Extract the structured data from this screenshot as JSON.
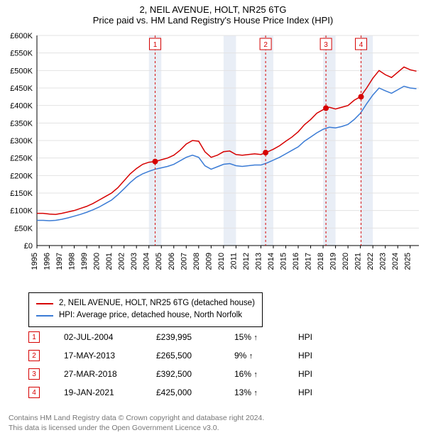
{
  "title_line1": "2, NEIL AVENUE, HOLT, NR25 6TG",
  "title_line2": "Price paid vs. HM Land Registry's House Price Index (HPI)",
  "chart": {
    "type": "line",
    "y_prefix": "£",
    "ylim": [
      0,
      600000
    ],
    "ytick_step": 50000,
    "yticks_k": [
      "£0",
      "£50K",
      "£100K",
      "£150K",
      "£200K",
      "£250K",
      "£300K",
      "£350K",
      "£400K",
      "£450K",
      "£500K",
      "£550K",
      "£600K"
    ],
    "xlim_years": [
      1995,
      2025.7
    ],
    "xticks": [
      1995,
      1996,
      1997,
      1998,
      1999,
      2000,
      2001,
      2002,
      2003,
      2004,
      2005,
      2006,
      2007,
      2008,
      2009,
      2010,
      2011,
      2012,
      2013,
      2014,
      2015,
      2016,
      2017,
      2018,
      2019,
      2020,
      2021,
      2022,
      2023,
      2024,
      2025
    ],
    "line_width": 1.5,
    "grid_color": "#e3e3e3",
    "band_color": "#e9eef6",
    "band_years": [
      [
        2004,
        2005
      ],
      [
        2010,
        2011
      ],
      [
        2013,
        2014
      ],
      [
        2018,
        2019
      ],
      [
        2021,
        2022
      ]
    ],
    "series": [
      {
        "name": "property",
        "label": "2, NEIL AVENUE, HOLT, NR25 6TG (detached house)",
        "color": "#d60000",
        "points": [
          [
            1995.0,
            92000
          ],
          [
            1995.5,
            92000
          ],
          [
            1996.0,
            90000
          ],
          [
            1996.5,
            89000
          ],
          [
            1997.0,
            92000
          ],
          [
            1997.5,
            96000
          ],
          [
            1998.0,
            100000
          ],
          [
            1998.5,
            106000
          ],
          [
            1999.0,
            112000
          ],
          [
            1999.5,
            120000
          ],
          [
            2000.0,
            130000
          ],
          [
            2000.5,
            140000
          ],
          [
            2001.0,
            150000
          ],
          [
            2001.5,
            165000
          ],
          [
            2002.0,
            185000
          ],
          [
            2002.5,
            205000
          ],
          [
            2003.0,
            220000
          ],
          [
            2003.5,
            232000
          ],
          [
            2004.0,
            238000
          ],
          [
            2004.5,
            239995
          ],
          [
            2005.0,
            245000
          ],
          [
            2005.5,
            250000
          ],
          [
            2006.0,
            258000
          ],
          [
            2006.5,
            272000
          ],
          [
            2007.0,
            290000
          ],
          [
            2007.5,
            300000
          ],
          [
            2008.0,
            298000
          ],
          [
            2008.5,
            268000
          ],
          [
            2009.0,
            252000
          ],
          [
            2009.5,
            258000
          ],
          [
            2010.0,
            268000
          ],
          [
            2010.5,
            270000
          ],
          [
            2011.0,
            260000
          ],
          [
            2011.5,
            258000
          ],
          [
            2012.0,
            260000
          ],
          [
            2012.5,
            262000
          ],
          [
            2013.0,
            260000
          ],
          [
            2013.4,
            265500
          ],
          [
            2014.0,
            275000
          ],
          [
            2014.5,
            285000
          ],
          [
            2015.0,
            298000
          ],
          [
            2015.5,
            310000
          ],
          [
            2016.0,
            325000
          ],
          [
            2016.5,
            345000
          ],
          [
            2017.0,
            360000
          ],
          [
            2017.5,
            378000
          ],
          [
            2018.0,
            388000
          ],
          [
            2018.2,
            392500
          ],
          [
            2018.5,
            395000
          ],
          [
            2019.0,
            390000
          ],
          [
            2019.5,
            395000
          ],
          [
            2020.0,
            400000
          ],
          [
            2020.5,
            415000
          ],
          [
            2021.0,
            425000
          ],
          [
            2021.5,
            450000
          ],
          [
            2022.0,
            478000
          ],
          [
            2022.5,
            500000
          ],
          [
            2023.0,
            488000
          ],
          [
            2023.5,
            480000
          ],
          [
            2024.0,
            495000
          ],
          [
            2024.5,
            510000
          ],
          [
            2025.0,
            502000
          ],
          [
            2025.5,
            498000
          ]
        ]
      },
      {
        "name": "hpi",
        "label": "HPI: Average price, detached house, North Norfolk",
        "color": "#3a7bd5",
        "points": [
          [
            1995.0,
            72000
          ],
          [
            1995.5,
            72000
          ],
          [
            1996.0,
            71000
          ],
          [
            1996.5,
            72000
          ],
          [
            1997.0,
            75000
          ],
          [
            1997.5,
            79000
          ],
          [
            1998.0,
            84000
          ],
          [
            1998.5,
            89000
          ],
          [
            1999.0,
            95000
          ],
          [
            1999.5,
            102000
          ],
          [
            2000.0,
            110000
          ],
          [
            2000.5,
            120000
          ],
          [
            2001.0,
            130000
          ],
          [
            2001.5,
            145000
          ],
          [
            2002.0,
            162000
          ],
          [
            2002.5,
            180000
          ],
          [
            2003.0,
            195000
          ],
          [
            2003.5,
            205000
          ],
          [
            2004.0,
            212000
          ],
          [
            2004.5,
            218000
          ],
          [
            2005.0,
            222000
          ],
          [
            2005.5,
            226000
          ],
          [
            2006.0,
            232000
          ],
          [
            2006.5,
            242000
          ],
          [
            2007.0,
            252000
          ],
          [
            2007.5,
            258000
          ],
          [
            2008.0,
            252000
          ],
          [
            2008.5,
            228000
          ],
          [
            2009.0,
            218000
          ],
          [
            2009.5,
            225000
          ],
          [
            2010.0,
            232000
          ],
          [
            2010.5,
            234000
          ],
          [
            2011.0,
            228000
          ],
          [
            2011.5,
            226000
          ],
          [
            2012.0,
            228000
          ],
          [
            2012.5,
            230000
          ],
          [
            2013.0,
            230000
          ],
          [
            2013.5,
            236000
          ],
          [
            2014.0,
            244000
          ],
          [
            2014.5,
            252000
          ],
          [
            2015.0,
            262000
          ],
          [
            2015.5,
            272000
          ],
          [
            2016.0,
            282000
          ],
          [
            2016.5,
            298000
          ],
          [
            2017.0,
            310000
          ],
          [
            2017.5,
            322000
          ],
          [
            2018.0,
            332000
          ],
          [
            2018.5,
            338000
          ],
          [
            2019.0,
            336000
          ],
          [
            2019.5,
            340000
          ],
          [
            2020.0,
            346000
          ],
          [
            2020.5,
            360000
          ],
          [
            2021.0,
            378000
          ],
          [
            2021.5,
            405000
          ],
          [
            2022.0,
            430000
          ],
          [
            2022.5,
            450000
          ],
          [
            2023.0,
            442000
          ],
          [
            2023.5,
            435000
          ],
          [
            2024.0,
            445000
          ],
          [
            2024.5,
            455000
          ],
          [
            2025.0,
            450000
          ],
          [
            2025.5,
            448000
          ]
        ]
      }
    ],
    "sale_markers": [
      {
        "n": "1",
        "year": 2004.5,
        "value": 239995,
        "color": "#d60000"
      },
      {
        "n": "2",
        "year": 2013.38,
        "value": 265500,
        "color": "#d60000"
      },
      {
        "n": "3",
        "year": 2018.23,
        "value": 392500,
        "color": "#d60000"
      },
      {
        "n": "4",
        "year": 2021.05,
        "value": 425000,
        "color": "#d60000"
      }
    ]
  },
  "legend": {
    "items": [
      {
        "color": "#d60000",
        "label": "2, NEIL AVENUE, HOLT, NR25 6TG (detached house)"
      },
      {
        "color": "#3a7bd5",
        "label": "HPI: Average price, detached house, North Norfolk"
      }
    ]
  },
  "sales_table": {
    "rows": [
      {
        "n": "1",
        "date": "02-JUL-2004",
        "price": "£239,995",
        "delta": "15%",
        "arrow": "↑",
        "vs": "HPI",
        "color": "#d60000"
      },
      {
        "n": "2",
        "date": "17-MAY-2013",
        "price": "£265,500",
        "delta": "9%",
        "arrow": "↑",
        "vs": "HPI",
        "color": "#d60000"
      },
      {
        "n": "3",
        "date": "27-MAR-2018",
        "price": "£392,500",
        "delta": "16%",
        "arrow": "↑",
        "vs": "HPI",
        "color": "#d60000"
      },
      {
        "n": "4",
        "date": "19-JAN-2021",
        "price": "£425,000",
        "delta": "13%",
        "arrow": "↑",
        "vs": "HPI",
        "color": "#d60000"
      }
    ]
  },
  "footer_line1": "Contains HM Land Registry data © Crown copyright and database right 2024.",
  "footer_line2": "This data is licensed under the Open Government Licence v3.0."
}
